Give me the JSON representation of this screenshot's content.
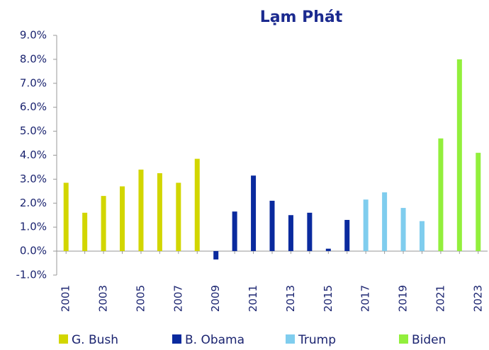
{
  "chart_data": {
    "type": "bar",
    "title": "Lạm Phát",
    "categories": [
      "2001",
      null,
      "2003",
      null,
      "2005",
      null,
      "2007",
      null,
      "2009",
      null,
      "2011",
      null,
      "2013",
      null,
      "2015",
      null,
      "2017",
      null,
      "2019",
      null,
      "2021",
      null,
      "2023"
    ],
    "series": [
      {
        "name": "G. Bush",
        "color": "#d2d600",
        "values": [
          2.85,
          1.6,
          2.3,
          2.7,
          3.4,
          3.25,
          2.85,
          3.85,
          null,
          null,
          null,
          null,
          null,
          null,
          null,
          null,
          null,
          null,
          null,
          null,
          null,
          null,
          null
        ]
      },
      {
        "name": "B. Obama",
        "color": "#0a2a9e",
        "values": [
          null,
          null,
          null,
          null,
          null,
          null,
          null,
          null,
          -0.35,
          1.65,
          3.15,
          2.1,
          1.5,
          1.6,
          0.1,
          1.3,
          null,
          null,
          null,
          null,
          null,
          null,
          null
        ]
      },
      {
        "name": "Trump",
        "color": "#7fcdee",
        "values": [
          null,
          null,
          null,
          null,
          null,
          null,
          null,
          null,
          null,
          null,
          null,
          null,
          null,
          null,
          null,
          null,
          2.15,
          2.45,
          1.8,
          1.25,
          null,
          null,
          null
        ]
      },
      {
        "name": "Biden",
        "color": "#92ef3c",
        "values": [
          null,
          null,
          null,
          null,
          null,
          null,
          null,
          null,
          null,
          null,
          null,
          null,
          null,
          null,
          null,
          null,
          null,
          null,
          null,
          null,
          4.7,
          8.0,
          4.1
        ]
      }
    ],
    "ylim": [
      -1,
      9
    ],
    "yticks": [
      {
        "value": -1,
        "label": "-1.0%"
      },
      {
        "value": 0,
        "label": "0.0%"
      },
      {
        "value": 1,
        "label": "1.0%"
      },
      {
        "value": 2,
        "label": "2.0%"
      },
      {
        "value": 3,
        "label": "3.0%"
      },
      {
        "value": 4,
        "label": "4.0%"
      },
      {
        "value": 5,
        "label": "5.0%"
      },
      {
        "value": 6,
        "label": "6.0%"
      },
      {
        "value": 7,
        "label": "7.0%"
      },
      {
        "value": 8,
        "label": "8.0%"
      },
      {
        "value": 9,
        "label": "9.0%"
      }
    ],
    "grid": false,
    "legend": "bottom"
  }
}
